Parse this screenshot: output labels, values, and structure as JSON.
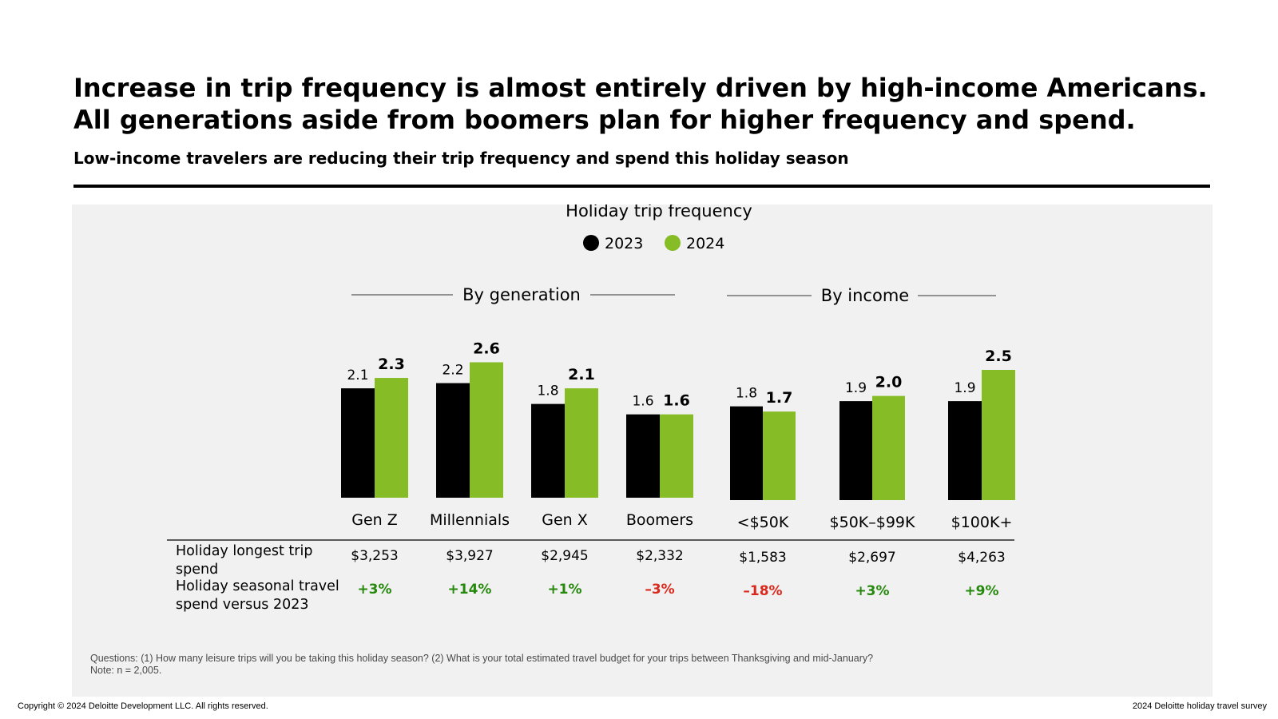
{
  "title_lines": [
    "Increase in trip frequency is almost entirely driven by high-income Americans.",
    "All generations aside from boomers plan for higher frequency and spend."
  ],
  "subtitle": "Low-income travelers are reducing their trip frequency and spend this holiday season",
  "colors": {
    "series_2023": "#000000",
    "series_2024": "#86bc25",
    "positive": "#26890d",
    "negative": "#da291c",
    "panel": "#f1f1f1"
  },
  "chart_data": {
    "type": "bar",
    "title": "Holiday trip frequency",
    "groups": [
      {
        "label": "By generation",
        "categories": [
          "Gen Z",
          "Millennials",
          "Gen X",
          "Boomers"
        ]
      },
      {
        "label": "By income",
        "categories": [
          "<$50K",
          "$50K–$99K",
          "$100K+"
        ]
      }
    ],
    "categories": [
      "Gen Z",
      "Millennials",
      "Gen X",
      "Boomers",
      "<$50K",
      "$50K–$99K",
      "$100K+"
    ],
    "series": [
      {
        "name": "2023",
        "values": [
          2.1,
          2.2,
          1.8,
          1.6,
          1.8,
          1.9,
          1.9
        ],
        "labels": [
          "2.1",
          "2.2",
          "1.8",
          "1.6",
          "1.8",
          "1.9",
          "1.9"
        ]
      },
      {
        "name": "2024",
        "values": [
          2.3,
          2.6,
          2.1,
          1.6,
          1.7,
          2.0,
          2.5
        ],
        "labels": [
          "2.3",
          "2.6",
          "2.1",
          "1.6",
          "1.7",
          "2.0",
          "2.5"
        ]
      }
    ],
    "ylim": [
      0,
      2.6
    ],
    "legend": "top-center",
    "grid": false,
    "table": {
      "rows": [
        {
          "label_lines": [
            "Holiday longest trip",
            "spend"
          ],
          "values": [
            "$3,253",
            "$3,927",
            "$2,945",
            "$2,332",
            "$1,583",
            "$2,697",
            "$4,263"
          ]
        },
        {
          "label_lines": [
            "Holiday seasonal travel",
            "spend versus 2023"
          ],
          "values": [
            "+3%",
            "+14%",
            "+1%",
            "–3%",
            "–18%",
            "+3%",
            "+9%"
          ]
        }
      ]
    }
  },
  "footnote_lines": [
    "Questions: (1) How many leisure trips will you be taking this holiday season? (2) What is your total estimated travel budget for your trips between Thanksgiving and mid-January?",
    "Note: n = 2,005."
  ],
  "copyright": "Copyright © 2024 Deloitte Development LLC. All rights reserved.",
  "survey_label": "2024 Deloitte holiday travel survey"
}
